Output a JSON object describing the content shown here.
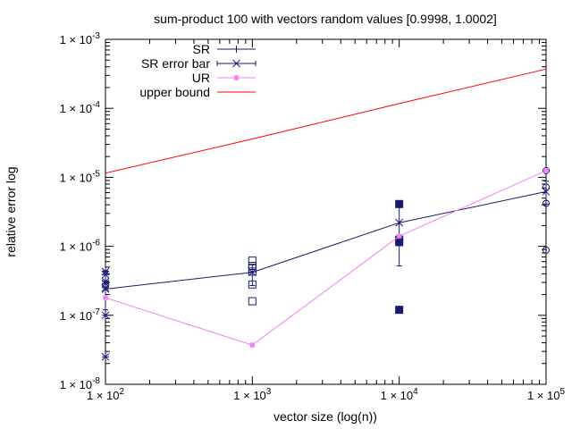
{
  "chart_data": {
    "type": "line",
    "title": "sum-product 100 with vectors random values [0.9998, 1.0002]",
    "xlabel": "vector size (log(n))",
    "ylabel": "relative error log",
    "xscale": "log",
    "yscale": "log",
    "xlim": [
      100,
      100000
    ],
    "ylim": [
      1e-08,
      0.001
    ],
    "grid": false,
    "legend_position": "top-left",
    "x_ticks": [
      {
        "value": 100,
        "mant": "1 × 10",
        "exp": "2"
      },
      {
        "value": 1000,
        "mant": "1 × 10",
        "exp": "3"
      },
      {
        "value": 10000,
        "mant": "1 × 10",
        "exp": "4"
      },
      {
        "value": 100000,
        "mant": "1 × 10",
        "exp": "5"
      }
    ],
    "y_ticks": [
      {
        "value": 1e-08,
        "mant": "1 × 10",
        "exp": "-8"
      },
      {
        "value": 1e-07,
        "mant": "1 × 10",
        "exp": "-7"
      },
      {
        "value": 1e-06,
        "mant": "1 × 10",
        "exp": "-6"
      },
      {
        "value": 1e-05,
        "mant": "1 × 10",
        "exp": "-5"
      },
      {
        "value": 0.0001,
        "mant": "1 × 10",
        "exp": "-4"
      },
      {
        "value": 0.001,
        "mant": "1 × 10",
        "exp": "-3"
      }
    ],
    "series": [
      {
        "name": "SR",
        "color": "#191970",
        "style": "points-plus",
        "points": [
          {
            "x": 100,
            "y": 4.3e-07
          },
          {
            "x": 100,
            "y": 3.9e-07
          },
          {
            "x": 100,
            "y": 3.1e-07
          },
          {
            "x": 100,
            "y": 2.9e-07
          },
          {
            "x": 100,
            "y": 2.5e-07
          },
          {
            "x": 100,
            "y": 1e-07
          },
          {
            "x": 100,
            "y": 2.5e-08
          },
          {
            "x": 1000,
            "y": 6.2e-07
          },
          {
            "x": 1000,
            "y": 5.2e-07
          },
          {
            "x": 1000,
            "y": 4.8e-07
          },
          {
            "x": 1000,
            "y": 4.3e-07
          },
          {
            "x": 1000,
            "y": 2.8e-07
          },
          {
            "x": 1000,
            "y": 1.6e-07
          },
          {
            "x": 10000,
            "y": 4.1e-06
          },
          {
            "x": 10000,
            "y": 1.25e-06
          },
          {
            "x": 10000,
            "y": 1.15e-06
          },
          {
            "x": 10000,
            "y": 1.2e-07
          },
          {
            "x": 100000,
            "y": 1.25e-05
          },
          {
            "x": 100000,
            "y": 7.2e-06
          },
          {
            "x": 100000,
            "y": 4.2e-06
          },
          {
            "x": 100000,
            "y": 8.8e-07
          }
        ]
      },
      {
        "name": "SR error bar",
        "color": "#191970",
        "style": "line-errorbars",
        "points": [
          {
            "x": 100,
            "y": 2.4e-07,
            "ylow": 1.2e-07,
            "yhigh": 4.4e-07
          },
          {
            "x": 1000,
            "y": 4.2e-07,
            "ylow": 2.7e-07,
            "yhigh": 5.5e-07
          },
          {
            "x": 10000,
            "y": 2.2e-06,
            "ylow": 5.2e-07,
            "yhigh": 4.1e-06
          },
          {
            "x": 100000,
            "y": 6.2e-06,
            "ylow": 4.1e-06,
            "yhigh": 8.8e-06
          }
        ]
      },
      {
        "name": "UR",
        "color": "#ee82ee",
        "style": "line-points",
        "points": [
          {
            "x": 100,
            "y": 1.8e-07
          },
          {
            "x": 1000,
            "y": 3.7e-08
          },
          {
            "x": 10000,
            "y": 1.4e-06
          },
          {
            "x": 100000,
            "y": 1.25e-05
          }
        ]
      },
      {
        "name": "upper bound",
        "color": "#ff0000",
        "style": "line",
        "points": [
          {
            "x": 100,
            "y": 1.15e-05
          },
          {
            "x": 1000,
            "y": 3.6e-05
          },
          {
            "x": 10000,
            "y": 0.000117
          },
          {
            "x": 100000,
            "y": 0.00037
          }
        ]
      }
    ]
  }
}
